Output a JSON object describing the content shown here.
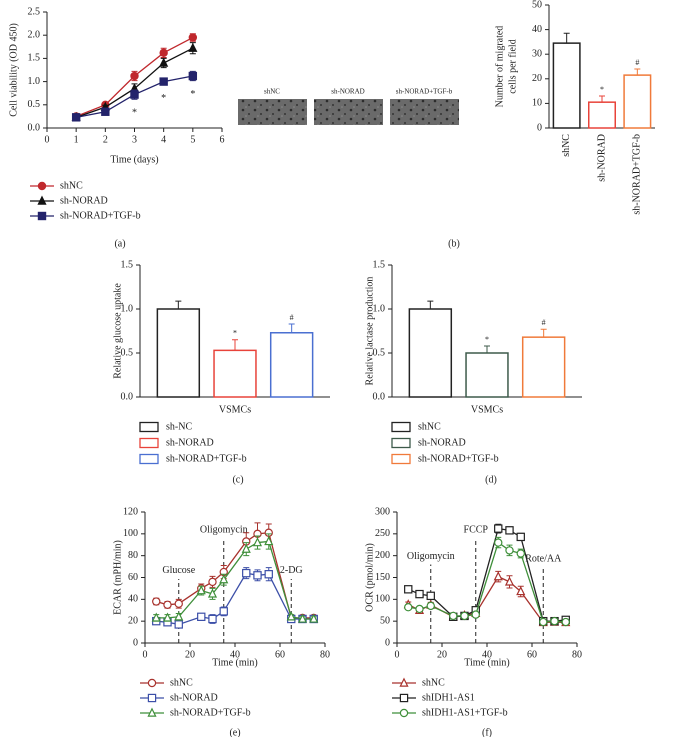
{
  "micrographs": {
    "labels": [
      "shNC",
      "sh-NORAD",
      "sh-NORAD+TGF-b"
    ]
  },
  "chart_data": [
    {
      "type": "line",
      "label": "(a)",
      "xlabel": "Time (days)",
      "ylabel": "Cell viability (OD 450)",
      "x": [
        1,
        2,
        3,
        4,
        5
      ],
      "xlim": [
        0,
        6
      ],
      "xticks": [
        0,
        1,
        2,
        3,
        4,
        5,
        6
      ],
      "ylim": [
        0,
        2.5
      ],
      "yticks": [
        {
          "value": 0,
          "label": "0.0"
        },
        0.5,
        {
          "value": 1,
          "label": "1.0"
        },
        1.5,
        {
          "value": 2,
          "label": "2.0"
        },
        2.5
      ],
      "filled_markers": true,
      "series": [
        {
          "name": "shNC",
          "color": "#c0282d",
          "marker": "circle",
          "values": [
            0.25,
            0.5,
            1.12,
            1.62,
            1.95
          ],
          "errors": [
            0.03,
            0.04,
            0.1,
            0.1,
            0.08
          ]
        },
        {
          "name": "sh-NORAD",
          "color": "#111111",
          "marker": "triangle",
          "values": [
            0.23,
            0.45,
            0.85,
            1.4,
            1.72
          ],
          "errors": [
            0.03,
            0.04,
            0.1,
            0.1,
            0.12
          ]
        },
        {
          "name": "sh-NORAD+TGF-b",
          "color": "#23236b",
          "marker": "square",
          "values": [
            0.23,
            0.35,
            0.72,
            1.0,
            1.12
          ],
          "errors": [
            0.03,
            0.03,
            0.1,
            0.07,
            0.1
          ]
        }
      ],
      "annotations": [
        {
          "x": 3,
          "label": "*"
        },
        {
          "x": 4,
          "label": "*"
        },
        {
          "x": 5,
          "label": "*"
        }
      ]
    },
    {
      "type": "bar",
      "label": "(b)",
      "ylabel": [
        "Number of migrated",
        "cells per field"
      ],
      "categories": [
        "shNC",
        "sh-NORAD",
        "sh-NORAD+TGF-b"
      ],
      "values": [
        34.5,
        10.5,
        21.5
      ],
      "errors": [
        4,
        2.5,
        2.5
      ],
      "colors": [
        "#222222",
        "#e8433a",
        "#f07a3a"
      ],
      "marks": [
        null,
        "*",
        "#"
      ],
      "ylim": [
        0,
        50
      ],
      "yticks": [
        0,
        10,
        20,
        30,
        40,
        50
      ]
    },
    {
      "type": "bar",
      "label": "(c)",
      "ylabel": "Relative glucose uptake",
      "categories": [
        "VSMCs"
      ],
      "ylim": [
        0,
        1.5
      ],
      "yticks": [
        {
          "value": 0,
          "label": "0.0"
        },
        0.5,
        {
          "value": 1,
          "label": "1.0"
        },
        1.5
      ],
      "series": [
        {
          "name": "sh-NC",
          "color": "#222222",
          "values": [
            1.0
          ],
          "errors": [
            0.09
          ],
          "marks": [
            null
          ]
        },
        {
          "name": "sh-NORAD",
          "color": "#e8433a",
          "values": [
            0.53
          ],
          "errors": [
            0.12
          ],
          "marks": [
            "*"
          ]
        },
        {
          "name": "sh-NORAD+TGF-b",
          "color": "#4a6fd1",
          "values": [
            0.73
          ],
          "errors": [
            0.1
          ],
          "marks": [
            "#"
          ]
        }
      ]
    },
    {
      "type": "bar",
      "label": "(d)",
      "ylabel": "Relative lactase production",
      "categories": [
        "VSMCs"
      ],
      "ylim": [
        0,
        1.5
      ],
      "yticks": [
        {
          "value": 0,
          "label": "0.0"
        },
        0.5,
        {
          "value": 1,
          "label": "1.0"
        },
        1.5
      ],
      "series": [
        {
          "name": "shNC",
          "color": "#222222",
          "values": [
            1.0
          ],
          "errors": [
            0.09
          ],
          "marks": [
            null
          ]
        },
        {
          "name": "sh-NORAD",
          "color": "#3d5a4a",
          "values": [
            0.5
          ],
          "errors": [
            0.08
          ],
          "marks": [
            "*"
          ]
        },
        {
          "name": "sh-NORAD+TGF-b",
          "color": "#f07a3a",
          "values": [
            0.68
          ],
          "errors": [
            0.09
          ],
          "marks": [
            "#"
          ]
        }
      ]
    },
    {
      "type": "line",
      "label": "(e)",
      "xlabel": "Time (min)",
      "ylabel": "ECAR (mPH/min)",
      "x": [
        5,
        10,
        15,
        25,
        30,
        35,
        45,
        50,
        55,
        65,
        70,
        75
      ],
      "xlim": [
        0,
        80
      ],
      "xticks": [
        0,
        20,
        40,
        60,
        80
      ],
      "ylim": [
        0,
        120
      ],
      "yticks": [
        0,
        20,
        40,
        60,
        80,
        100,
        120
      ],
      "filled_markers": false,
      "series": [
        {
          "name": "shNC",
          "color": "#a8322d",
          "marker": "circle",
          "values": [
            38,
            35,
            36,
            50,
            56,
            65,
            93,
            100,
            101,
            23,
            23,
            23
          ],
          "errors": [
            3,
            3,
            4,
            4,
            5,
            6,
            8,
            10,
            8,
            2,
            2,
            2
          ]
        },
        {
          "name": "sh-NORAD",
          "color": "#3c4fa8",
          "marker": "square",
          "values": [
            20,
            19,
            17,
            24,
            22,
            29,
            64,
            62,
            63,
            22,
            22,
            22
          ],
          "errors": [
            3,
            3,
            3,
            3,
            4,
            4,
            5,
            5,
            6,
            2,
            2,
            2
          ]
        },
        {
          "name": "sh-NORAD+TGF-b",
          "color": "#3f8f3a",
          "marker": "triangle",
          "values": [
            23,
            23,
            24,
            48,
            45,
            58,
            86,
            92,
            93,
            24,
            22,
            22
          ],
          "errors": [
            3,
            3,
            3,
            4,
            5,
            5,
            6,
            6,
            7,
            2,
            2,
            2
          ]
        }
      ],
      "injections": [
        {
          "x": 15,
          "label": "Glucose"
        },
        {
          "x": 35,
          "label": "Oligomycin"
        },
        {
          "x": 65,
          "label": "2-DG"
        }
      ]
    },
    {
      "type": "line",
      "label": "(f)",
      "xlabel": "Time (min)",
      "ylabel": "OCR (pmol/min)",
      "x": [
        5,
        10,
        15,
        25,
        30,
        35,
        45,
        50,
        55,
        65,
        70,
        75
      ],
      "xlim": [
        0,
        80
      ],
      "xticks": [
        0,
        20,
        40,
        60,
        80
      ],
      "ylim": [
        0,
        300
      ],
      "yticks": [
        0,
        50,
        100,
        150,
        200,
        250,
        300
      ],
      "filled_markers": false,
      "series": [
        {
          "name": "shNC",
          "color": "#a8322d",
          "marker": "triangle",
          "values": [
            88,
            75,
            87,
            60,
            63,
            68,
            152,
            140,
            118,
            47,
            48,
            47
          ],
          "errors": [
            6,
            5,
            6,
            5,
            5,
            5,
            12,
            14,
            12,
            6,
            6,
            6
          ]
        },
        {
          "name": "shIDH1-AS1",
          "color": "#222222",
          "marker": "square",
          "values": [
            123,
            112,
            108,
            60,
            62,
            75,
            262,
            258,
            243,
            50,
            50,
            53
          ],
          "errors": [
            5,
            5,
            5,
            5,
            5,
            6,
            10,
            8,
            8,
            5,
            5,
            5
          ]
        },
        {
          "name": "shIDH1-AS1+TGF-b",
          "color": "#3f8f3a",
          "marker": "circle",
          "values": [
            82,
            78,
            85,
            62,
            62,
            65,
            230,
            212,
            205,
            48,
            50,
            48
          ],
          "errors": [
            5,
            5,
            5,
            5,
            5,
            5,
            12,
            12,
            10,
            5,
            5,
            5
          ]
        }
      ],
      "injections": [
        {
          "x": 15,
          "label": "Oligomycin"
        },
        {
          "x": 35,
          "label": "FCCP"
        },
        {
          "x": 65,
          "label": "Rote/AA"
        }
      ]
    }
  ]
}
